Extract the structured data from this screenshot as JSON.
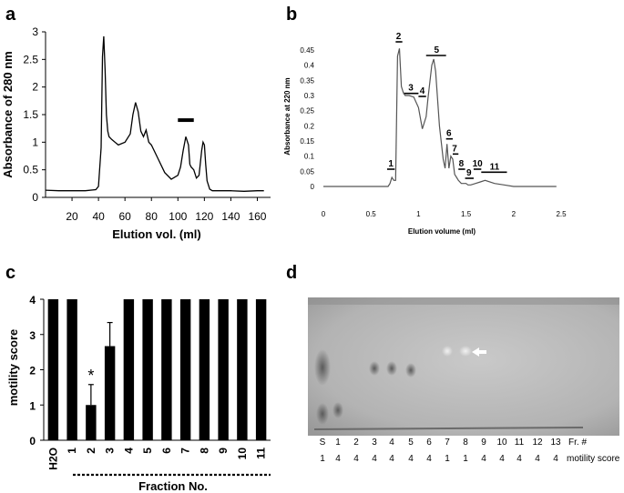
{
  "panels": {
    "a": "a",
    "b": "b",
    "c": "c",
    "d": "d"
  },
  "chart_data": [
    {
      "panel": "a",
      "type": "line",
      "xlabel": "Elution vol. (ml)",
      "ylabel": "Absorbance of 280 nm",
      "xlim": [
        0,
        170
      ],
      "ylim": [
        0,
        3
      ],
      "xticks": [
        20,
        40,
        60,
        80,
        100,
        120,
        140,
        160
      ],
      "yticks": [
        0,
        0.5,
        1,
        1.5,
        2,
        2.5,
        3
      ],
      "ytick_labels": [
        "0",
        "0.5",
        "1",
        "1.5",
        "2",
        "2.5",
        "3"
      ],
      "x": [
        0,
        10,
        20,
        30,
        38,
        40,
        42,
        43,
        44,
        45,
        46,
        47,
        48,
        50,
        55,
        60,
        64,
        66,
        68,
        70,
        72,
        74,
        76,
        78,
        80,
        85,
        90,
        95,
        100,
        102,
        104,
        106,
        108,
        109,
        110,
        112,
        114,
        116,
        118,
        119,
        120,
        121,
        122,
        124,
        126,
        130,
        140,
        150,
        160,
        165
      ],
      "y": [
        0.13,
        0.12,
        0.12,
        0.12,
        0.14,
        0.2,
        0.9,
        2.55,
        2.92,
        2.3,
        1.5,
        1.2,
        1.1,
        1.05,
        0.95,
        1.0,
        1.15,
        1.5,
        1.72,
        1.55,
        1.2,
        1.1,
        1.22,
        1.0,
        0.95,
        0.7,
        0.45,
        0.33,
        0.4,
        0.55,
        0.85,
        1.1,
        0.95,
        0.6,
        0.55,
        0.5,
        0.35,
        0.4,
        0.85,
        1.0,
        0.95,
        0.6,
        0.3,
        0.15,
        0.12,
        0.12,
        0.12,
        0.11,
        0.12,
        0.12
      ],
      "annotation_bar": {
        "x": [
          100,
          112
        ],
        "y": 1.4
      }
    },
    {
      "panel": "b",
      "type": "line",
      "xlabel": "Elution volume (ml)",
      "ylabel": "Absorbance at 220 nm",
      "xlim": [
        0,
        2.5
      ],
      "ylim": [
        0,
        0.45
      ],
      "xticks": [
        0,
        0.5,
        1,
        1.5,
        2,
        2.5
      ],
      "xtick_labels": [
        "0",
        "0.5",
        "1",
        "1.5",
        "2",
        "2.5"
      ],
      "yticks": [
        0,
        0.05,
        0.1,
        0.15,
        0.2,
        0.25,
        0.3,
        0.35,
        0.4,
        0.45
      ],
      "ytick_labels": [
        "0",
        "0.05",
        "0.1",
        "0.15",
        "0.2",
        "0.25",
        "0.3",
        "0.35",
        "0.4",
        "0.45"
      ],
      "x": [
        0,
        0.5,
        0.68,
        0.7,
        0.72,
        0.74,
        0.76,
        0.78,
        0.8,
        0.82,
        0.84,
        0.86,
        0.9,
        0.95,
        1.0,
        1.04,
        1.08,
        1.1,
        1.14,
        1.16,
        1.18,
        1.22,
        1.26,
        1.28,
        1.3,
        1.32,
        1.34,
        1.36,
        1.38,
        1.4,
        1.42,
        1.45,
        1.5,
        1.52,
        1.55,
        1.6,
        1.65,
        1.7,
        1.8,
        1.9,
        2.0,
        2.2,
        2.4,
        2.45
      ],
      "y": [
        0.0,
        0.0,
        0.0,
        0.01,
        0.03,
        0.02,
        0.02,
        0.43,
        0.455,
        0.33,
        0.31,
        0.3,
        0.3,
        0.295,
        0.26,
        0.19,
        0.23,
        0.29,
        0.4,
        0.42,
        0.38,
        0.2,
        0.09,
        0.06,
        0.14,
        0.06,
        0.1,
        0.09,
        0.04,
        0.03,
        0.02,
        0.01,
        0.01,
        0.005,
        0.005,
        0.01,
        0.015,
        0.02,
        0.01,
        0.005,
        0.0,
        0.0,
        0.0,
        0.0
      ],
      "peak_labels": [
        {
          "label": "1",
          "x": 0.71,
          "bar": [
            0.67,
            0.75
          ],
          "y": 0.045
        },
        {
          "label": "2",
          "x": 0.79,
          "bar": [
            0.76,
            0.83
          ],
          "y": 0.465
        },
        {
          "label": "3",
          "x": 0.92,
          "bar": [
            0.84,
            1.0
          ],
          "y": 0.295
        },
        {
          "label": "4",
          "x": 1.04,
          "bar": [
            1.0,
            1.08
          ],
          "y": 0.285
        },
        {
          "label": "5",
          "x": 1.19,
          "bar": [
            1.08,
            1.29
          ],
          "y": 0.42
        },
        {
          "label": "6",
          "x": 1.32,
          "bar": [
            1.29,
            1.36
          ],
          "y": 0.145
        },
        {
          "label": "7",
          "x": 1.38,
          "bar": [
            1.36,
            1.42
          ],
          "y": 0.095
        },
        {
          "label": "8",
          "x": 1.45,
          "bar": [
            1.42,
            1.49
          ],
          "y": 0.045
        },
        {
          "label": "9",
          "x": 1.53,
          "bar": [
            1.49,
            1.58
          ],
          "y": 0.015
        },
        {
          "label": "10",
          "x": 1.62,
          "bar": [
            1.58,
            1.66
          ],
          "y": 0.045
        },
        {
          "label": "11",
          "x": 1.8,
          "bar": [
            1.66,
            1.93
          ],
          "y": 0.035
        }
      ]
    },
    {
      "panel": "c",
      "type": "bar",
      "xlabel": "Fraction No.",
      "ylabel": "motility score",
      "categories": [
        "H2O",
        "1",
        "2",
        "3",
        "4",
        "5",
        "6",
        "7",
        "8",
        "9",
        "10",
        "11"
      ],
      "values": [
        4,
        4,
        1,
        2.67,
        4,
        4,
        4,
        4,
        4,
        4,
        4,
        4
      ],
      "errors": [
        0,
        0,
        0.58,
        0.67,
        0,
        0,
        0,
        0,
        0,
        0,
        0,
        0
      ],
      "significance": {
        "category": "2",
        "mark": "*"
      },
      "ylim": [
        0,
        4
      ],
      "yticks": [
        0,
        1,
        2,
        3,
        4
      ]
    }
  ],
  "gel": {
    "lane_labels": [
      "S",
      "1",
      "2",
      "3",
      "4",
      "5",
      "6",
      "7",
      "8",
      "9",
      "10",
      "11",
      "12",
      "13"
    ],
    "motility_scores": [
      "1",
      "4",
      "4",
      "4",
      "4",
      "4",
      "4",
      "1",
      "1",
      "4",
      "4",
      "4",
      "4",
      "4"
    ],
    "row_label_fraction": "Fr. #",
    "row_label_motility": "motility score",
    "arrow_icon": "arrow-left-icon"
  }
}
